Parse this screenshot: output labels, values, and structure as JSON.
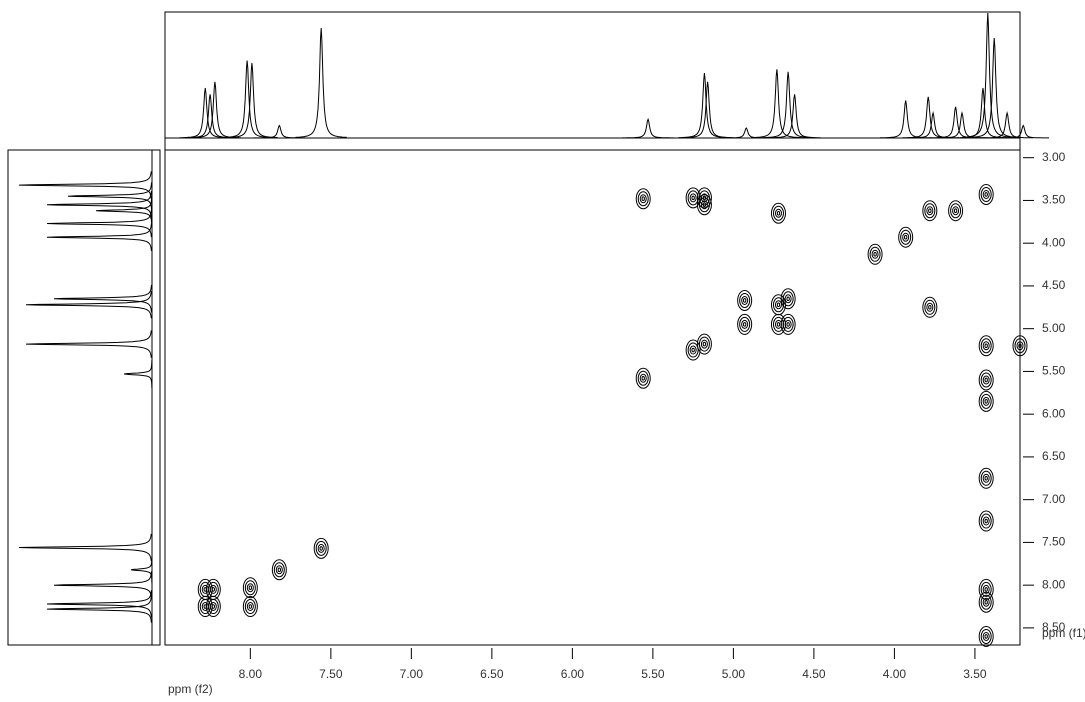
{
  "chart_data": {
    "type": "contour",
    "xlabel": "ppm (f2)",
    "ylabel": "ppm (f1)",
    "xlim": [
      8.53,
      3.22
    ],
    "ylim": [
      2.91,
      8.7
    ],
    "xticks": [
      {
        "value": 8,
        "label": "8.00"
      },
      {
        "value": 7.5,
        "label": "7.50"
      },
      {
        "value": 7,
        "label": "7.00"
      },
      {
        "value": 6.5,
        "label": "6.50"
      },
      {
        "value": 6,
        "label": "6.00"
      },
      {
        "value": 5.5,
        "label": "5.50"
      },
      {
        "value": 5,
        "label": "5.00"
      },
      {
        "value": 4.5,
        "label": "4.50"
      },
      {
        "value": 4,
        "label": "4.00"
      },
      {
        "value": 3.5,
        "label": "3.50"
      }
    ],
    "yticks": [
      {
        "value": 3,
        "label": "3.00"
      },
      {
        "value": 3.5,
        "label": "3.50"
      },
      {
        "value": 4,
        "label": "4.00"
      },
      {
        "value": 4.5,
        "label": "4.50"
      },
      {
        "value": 5,
        "label": "5.00"
      },
      {
        "value": 5.5,
        "label": "5.50"
      },
      {
        "value": 6,
        "label": "6.00"
      },
      {
        "value": 6.5,
        "label": "6.50"
      },
      {
        "value": 7,
        "label": "7.00"
      },
      {
        "value": 7.5,
        "label": "7.50"
      },
      {
        "value": 8,
        "label": "8.00"
      },
      {
        "value": 8.5,
        "label": "8.50"
      }
    ],
    "x": [
      8.28,
      8.23,
      8.28,
      8.23,
      8.0,
      8.0,
      7.82,
      7.56,
      5.56,
      5.56,
      5.25,
      5.25,
      5.18,
      5.18,
      5.18,
      4.93,
      4.93,
      4.72,
      4.72,
      4.66,
      4.66,
      4.72,
      3.93,
      4.12,
      3.78,
      3.78,
      3.62,
      3.43,
      3.43,
      3.43,
      3.43,
      3.43,
      3.43,
      3.43,
      3.43,
      3.43,
      3.22
    ],
    "values": [
      8.05,
      8.05,
      8.25,
      8.25,
      8.03,
      8.25,
      7.82,
      7.57,
      5.58,
      3.48,
      5.25,
      3.47,
      5.18,
      3.47,
      3.55,
      4.95,
      4.67,
      4.72,
      4.95,
      4.65,
      4.95,
      3.65,
      3.93,
      4.13,
      4.75,
      3.62,
      3.62,
      3.43,
      5.2,
      5.6,
      5.85,
      6.75,
      7.25,
      8.05,
      8.2,
      8.6,
      5.2
    ],
    "f2_projection": {
      "x": [
        8.28,
        8.25,
        8.22,
        8.02,
        7.99,
        7.82,
        7.56,
        5.53,
        5.18,
        5.16,
        4.92,
        4.73,
        4.66,
        4.62,
        3.93,
        3.79,
        3.76,
        3.62,
        3.58,
        3.45,
        3.42,
        3.38,
        3.3,
        3.2
      ],
      "values": [
        40,
        35,
        45,
        62,
        60,
        10,
        88,
        15,
        52,
        45,
        8,
        55,
        53,
        35,
        30,
        33,
        20,
        25,
        20,
        40,
        100,
        80,
        20,
        10
      ]
    },
    "f1_projection": {
      "x": [
        3.32,
        3.45,
        3.55,
        3.62,
        3.77,
        3.93,
        4.65,
        4.72,
        5.18,
        5.53,
        7.56,
        7.82,
        8.0,
        8.22,
        8.28
      ],
      "values": [
        95,
        60,
        75,
        40,
        75,
        75,
        70,
        90,
        90,
        20,
        95,
        15,
        70,
        75,
        75
      ]
    }
  }
}
